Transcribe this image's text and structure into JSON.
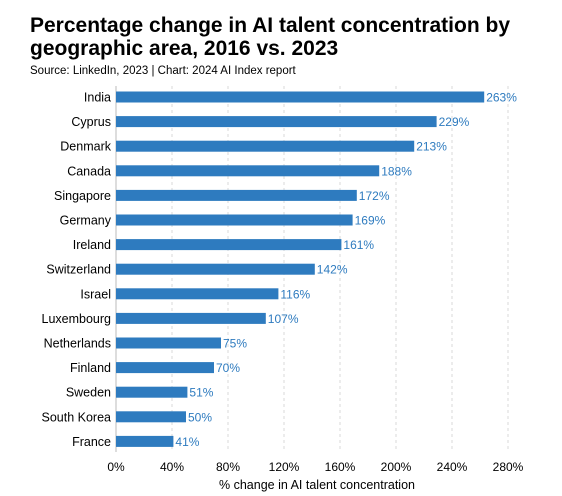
{
  "colors": {
    "bar": "#2e7bbf",
    "value_label": "#2e7bbf",
    "grid": "#d9d9d9",
    "text": "#000000"
  },
  "chart_data": {
    "type": "bar",
    "orientation": "horizontal",
    "title": "Percentage change in AI talent concentration by geographic area, 2016 vs. 2023",
    "subtitle": "Source: LinkedIn, 2023 | Chart: 2024 AI Index report",
    "xlabel": "% change in AI talent concentration",
    "ylabel": "",
    "xlim": [
      0,
      280
    ],
    "xticks": [
      0,
      40,
      80,
      120,
      160,
      200,
      240,
      280
    ],
    "xtick_labels": [
      "0%",
      "40%",
      "80%",
      "120%",
      "160%",
      "200%",
      "240%",
      "280%"
    ],
    "grid": "vertical dashed",
    "categories": [
      "India",
      "Cyprus",
      "Denmark",
      "Canada",
      "Singapore",
      "Germany",
      "Ireland",
      "Switzerland",
      "Israel",
      "Luxembourg",
      "Netherlands",
      "Finland",
      "Sweden",
      "South Korea",
      "France"
    ],
    "values": [
      263,
      229,
      213,
      188,
      172,
      169,
      161,
      142,
      116,
      107,
      75,
      70,
      51,
      50,
      41
    ],
    "value_labels": [
      "263%",
      "229%",
      "213%",
      "188%",
      "172%",
      "169%",
      "161%",
      "142%",
      "116%",
      "107%",
      "75%",
      "70%",
      "51%",
      "50%",
      "41%"
    ]
  }
}
